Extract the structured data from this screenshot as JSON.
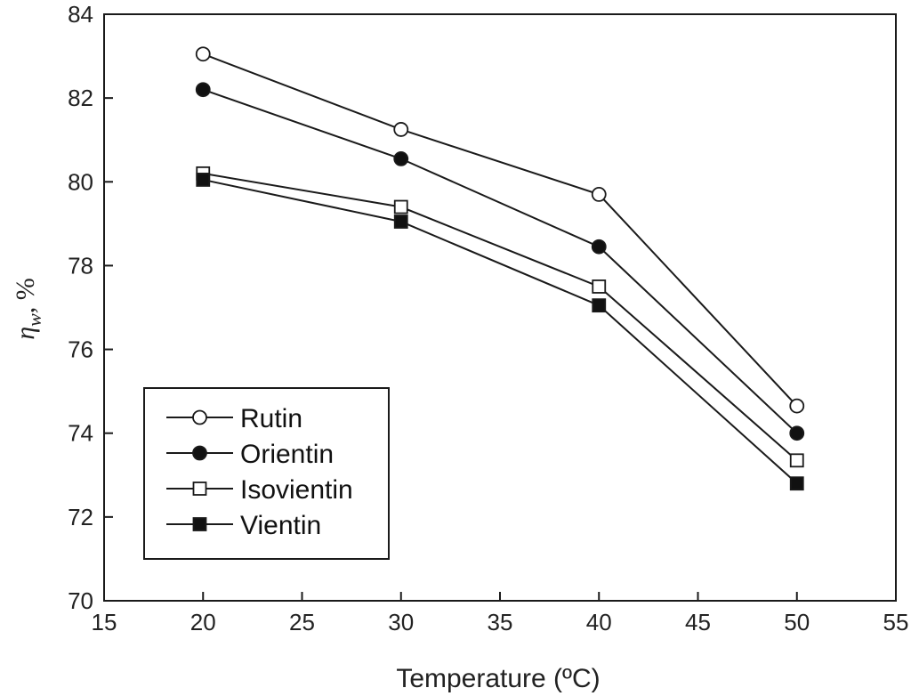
{
  "chart_data": {
    "type": "line",
    "title": "",
    "xlabel": "Temperature (ºC)",
    "ylabel": {
      "symbol": "η",
      "subscript": "w",
      "rest": ", %"
    },
    "x": [
      20,
      30,
      40,
      50
    ],
    "xlim": [
      15,
      55
    ],
    "ylim": [
      70,
      84
    ],
    "xticks": [
      15,
      20,
      25,
      30,
      35,
      40,
      45,
      50,
      55
    ],
    "yticks": [
      70,
      72,
      74,
      76,
      78,
      80,
      82,
      84
    ],
    "grid": false,
    "legend_position": "lower-left",
    "series": [
      {
        "name": "Rutin",
        "marker": "circle",
        "fill": "open",
        "values": [
          83.05,
          81.25,
          79.7,
          74.65
        ]
      },
      {
        "name": "Orientin",
        "marker": "circle",
        "fill": "filled",
        "values": [
          82.2,
          80.55,
          78.45,
          74.0
        ]
      },
      {
        "name": "Isovientin",
        "marker": "square",
        "fill": "open",
        "values": [
          80.2,
          79.4,
          77.5,
          73.35
        ]
      },
      {
        "name": "Vientin",
        "marker": "square",
        "fill": "filled",
        "values": [
          80.05,
          79.05,
          77.05,
          72.8
        ]
      }
    ],
    "colors": {
      "line": "#1a1a1a",
      "open_fill": "#ffffff",
      "filled_fill": "#111111"
    }
  }
}
